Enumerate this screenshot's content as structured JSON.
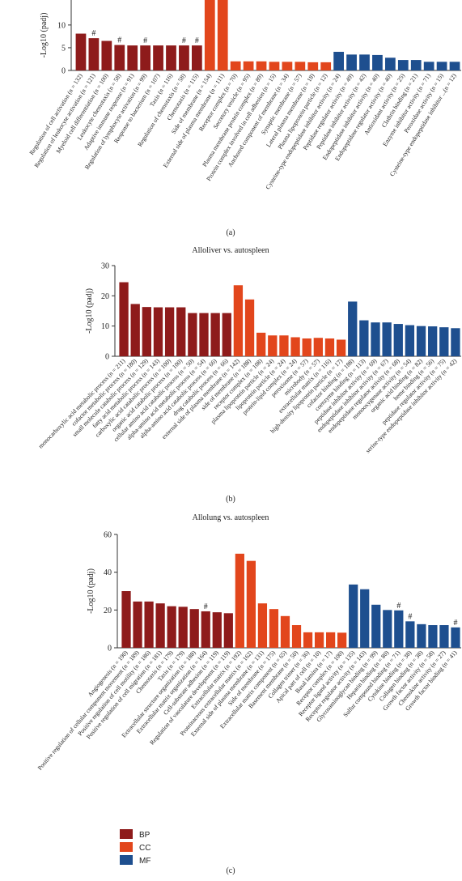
{
  "chart_data": [
    {
      "type": "bar",
      "caption": "(a)",
      "ylabel": "-Log10 (padj)",
      "ylim": [
        0,
        15.5
      ],
      "yticks": [
        0,
        5,
        10
      ],
      "series": [
        {
          "color": "#8e1b1b",
          "categories": [
            "Regulation of cell activation (n = 132)",
            "Regulation of leukocyte activation (n = 121)",
            "Myeloid cell differentiation (n = 100)",
            "Leukocyte chemotaxis (n = 58)",
            "Adaptive immune response (n = 91)",
            "Regulation of lymphocyte activation (n = 99)",
            "Response to bacterium (n = 107)",
            "Taxis (n = 116)",
            "Regulation of chemotaxis (n = 58)",
            "Chemotaxis (n = 115)"
          ],
          "values": [
            8.1,
            7.1,
            6.5,
            5.6,
            5.5,
            5.5,
            5.5,
            5.5,
            5.5,
            5.5
          ],
          "notes": [
            null,
            "#",
            null,
            "#",
            null,
            "#",
            null,
            null,
            "#",
            "#"
          ]
        },
        {
          "color": "#e2461c",
          "categories": [
            "Side of membrane (n = 154)",
            "External side of plasma membrane (n = 111)",
            "Receptor complex (n = 70)",
            "Secretory vesicle (n = 95)",
            "Plasma membrane protein complex (n = 89)",
            "Protein complex involved in cell adhesion (n = 15)",
            "Anchored component of membrane (n = 34)",
            "Synaptic membrane (n = 57)",
            "Lateral plasma membrane (n = 18)",
            "Plasma lipoprotein particle (n = 12)"
          ],
          "values": [
            15.5,
            15.5,
            2,
            2,
            2,
            1.9,
            1.9,
            1.9,
            1.8,
            1.8
          ]
        },
        {
          "color": "#1e4f8f",
          "categories": [
            "Cysteine-type endopeptidase inhibitor activity (n = 24)",
            "Peptidase regulator activity (n = 49)",
            "Peptidase inhibitor activity (n = 42)",
            "Endopeptidase inhibitor activity (n = 40)",
            "Endopeptidase regulator activity (n = 40)",
            "Antioxidant activity (n = 25)",
            "Clathrin binding (n = 21)",
            "Enzyme inhibitor activity (n = 71)",
            "Peroxidase activity (n = 15)",
            "Cysteine-type endopeptidase inhibitor ...(n = 12)"
          ],
          "values": [
            4.1,
            3.5,
            3.5,
            3.4,
            2.8,
            2.3,
            2.3,
            1.9,
            1.9,
            1.9
          ]
        }
      ]
    },
    {
      "type": "bar",
      "title": "Alloliver vs. autospleen",
      "caption": "(b)",
      "ylabel": "-Log10 (padj)",
      "ylim": [
        0,
        30
      ],
      "yticks": [
        0,
        10,
        20,
        30
      ],
      "series": [
        {
          "color": "#8e1b1b",
          "categories": [
            "monocarboxylic acid metabolic process (n = 211)",
            "cofactor metabolic process (n = 180)",
            "small molecule catabolic process (n = 129)",
            "fatty acid metabolic process (n = 143)",
            "carboxylic acid catabolic process (n = 100)",
            "organic acid catabolic process (n = 100)",
            "cellular amino acid catabolic process (n = 50)",
            "alpha-amino acid metabolic process (n = 54)",
            "alpha-amino acid catabolic process (n = 66)",
            "drug catabolic process (n = 66)"
          ],
          "values": [
            24.5,
            17.3,
            16.3,
            16.2,
            16.2,
            16.2,
            14.3,
            14.3,
            14.3,
            14.3
          ]
        },
        {
          "color": "#e2461c",
          "categories": [
            "external side of plasma membrane (n = 142)",
            "side of membrane (n = 188)",
            "receptor complex (n = 108)",
            "plasma lipoprotein particle (n = 24)",
            "lipoprotein particle (n = 24)",
            "protein-lipid complex (n = 24)",
            "peroxisome (n = 57)",
            "microbody (n = 57)",
            "extracellular matrix (n = 116)",
            "high-density lipoprotein particle (n = 17)"
          ],
          "values": [
            23.5,
            18.8,
            7.8,
            6.9,
            6.9,
            6.3,
            5.9,
            6.1,
            5.9,
            5.5
          ]
        },
        {
          "color": "#1e4f8f",
          "categories": [
            "cofactor binding (n = 188)",
            "coenzyme binding (n = 113)",
            "peptidase inhibitor activity (n = 69)",
            "endopeptidase inhibitor activity (n = 67)",
            "endopeptidase regulator activity (n = 68)",
            "monooxygenase activity (n = 54)",
            "organic acid binding (n = 82)",
            "heme binding (n = 56)",
            "peptidase regulator activity (n = 75)",
            "serine-type endopeptidase inhibitor activity (n = 42)"
          ],
          "values": [
            18.1,
            11.9,
            11.2,
            11.2,
            10.7,
            10.3,
            10,
            9.9,
            9.6,
            9.3
          ]
        }
      ]
    },
    {
      "type": "bar",
      "title": "Allolung vs. autospleen",
      "caption": "(c)",
      "ylabel": "-Log10 (padj)",
      "ylim": [
        0,
        60
      ],
      "yticks": [
        0,
        20,
        40,
        60
      ],
      "series": [
        {
          "name": "BP",
          "color": "#8e1b1b",
          "categories": [
            "Angiogenesis (n = 190)",
            "Positive regulation of cellular component movement (n = 189)",
            "Positive regulation of cell motility (n = 186)",
            "Positive regulation of cell migration (n = 181)",
            "Chemotaxis (n = 179)",
            "Taxis (n = 179)",
            "Extracellular structure organization (n = 188)",
            "Extracellular matrix organization (n = 164)",
            "Cell-substrate adhesion (n = 119)",
            "Regulation of vasculature development (n = 119)"
          ],
          "values": [
            30,
            24.5,
            24.5,
            23.5,
            22,
            21.7,
            20.5,
            19.3,
            18.8,
            18.3
          ],
          "notes": [
            null,
            null,
            null,
            null,
            null,
            null,
            null,
            "#",
            null,
            null
          ]
        },
        {
          "name": "CC",
          "color": "#e2461c",
          "categories": [
            "Extracellular matrix (n = 192)",
            "Proteinaceous extracellular matrix (n = 162)",
            "External side of plasma membrane (n = 131)",
            "Side of membrane (n = 175)",
            "Extracellular matrix component (n = 65)",
            "Basement membrane (n = 50)",
            "Collagen trimer (n = 36)",
            "Apical part of cell (n = 10)",
            "Basal lamina (n = 17)",
            "Receptor complex (n = 100)"
          ],
          "values": [
            49.8,
            46,
            23.5,
            20.5,
            16.8,
            12,
            8.2,
            8.2,
            8.2,
            8
          ]
        },
        {
          "name": "MF",
          "color": "#1e4f8f",
          "categories": [
            "Receptor ligand activity (n = 135)",
            "Receptor regulator activity (n = 143)",
            "Glycosaminoglycan binding (n = 99)",
            "Heparin binding (n = 80)",
            "Sulfur compound binding (n = 71)",
            "Cytokine binding (n = 38)",
            "Collagen binding (n = 38)",
            "Growth factor activity (n = 58)",
            "Chemokine activity (n = 27)",
            "Growth factor binding (n = 41)"
          ],
          "values": [
            33.5,
            31,
            22.8,
            20,
            19.8,
            14,
            12.5,
            12,
            12,
            10.8
          ],
          "notes": [
            null,
            null,
            null,
            null,
            "#",
            "#",
            null,
            null,
            null,
            "#"
          ]
        }
      ]
    }
  ]
}
